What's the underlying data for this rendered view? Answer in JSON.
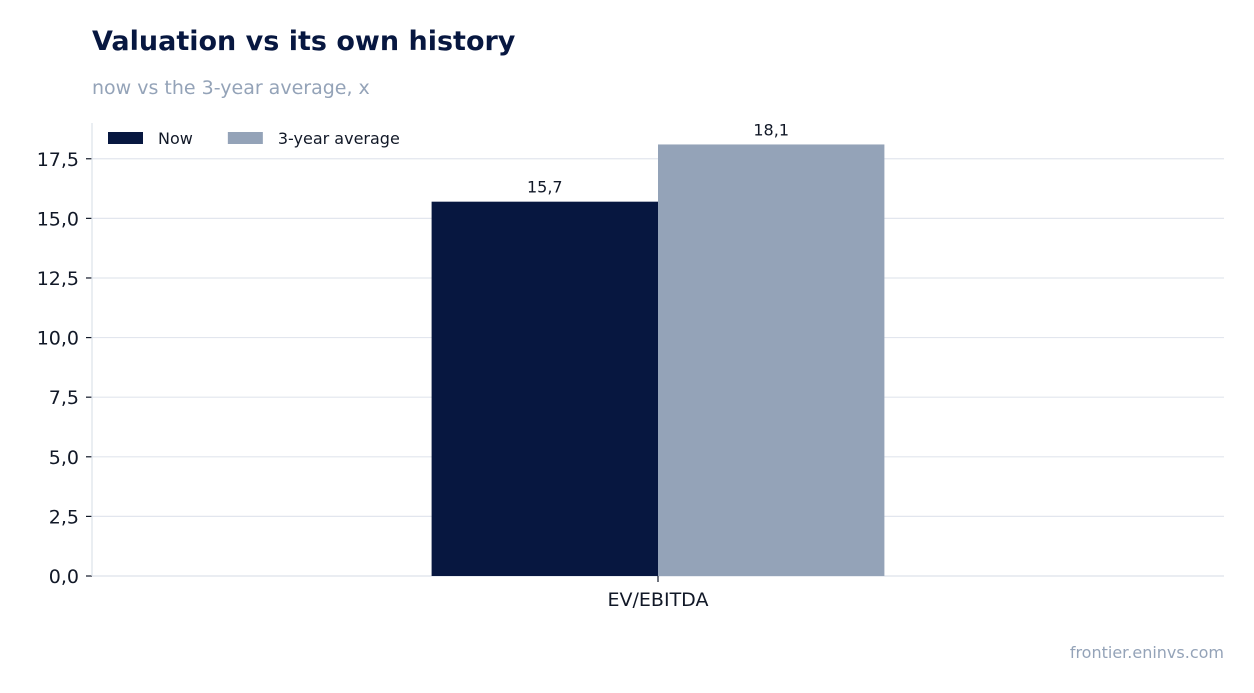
{
  "title": "Valuation vs its own history",
  "subtitle": "now vs the 3-year average, x",
  "source": "frontier.eninvs.com",
  "chart_data": {
    "type": "bar",
    "categories": [
      "EV/EBITDA"
    ],
    "series": [
      {
        "name": "Now",
        "values": [
          15.7
        ],
        "labels": [
          "15,7"
        ],
        "color": "#071740"
      },
      {
        "name": "3-year average",
        "values": [
          18.1
        ],
        "labels": [
          "18,1"
        ],
        "color": "#94a3b8"
      }
    ],
    "ylim": [
      0,
      19
    ],
    "yticks": [
      0,
      2.5,
      5,
      7.5,
      10,
      12.5,
      15,
      17.5
    ],
    "ytick_labels": [
      "0,0",
      "2,5",
      "5,0",
      "7,5",
      "10,0",
      "12,5",
      "15,0",
      "17,5"
    ],
    "xlabel": "",
    "ylabel": "",
    "grid": true,
    "legend_position": "top-left",
    "colors": {
      "grid": "#e2e6ee",
      "axis": "#dde2ea",
      "text": "#111827",
      "muted": "#94a3b8"
    }
  }
}
